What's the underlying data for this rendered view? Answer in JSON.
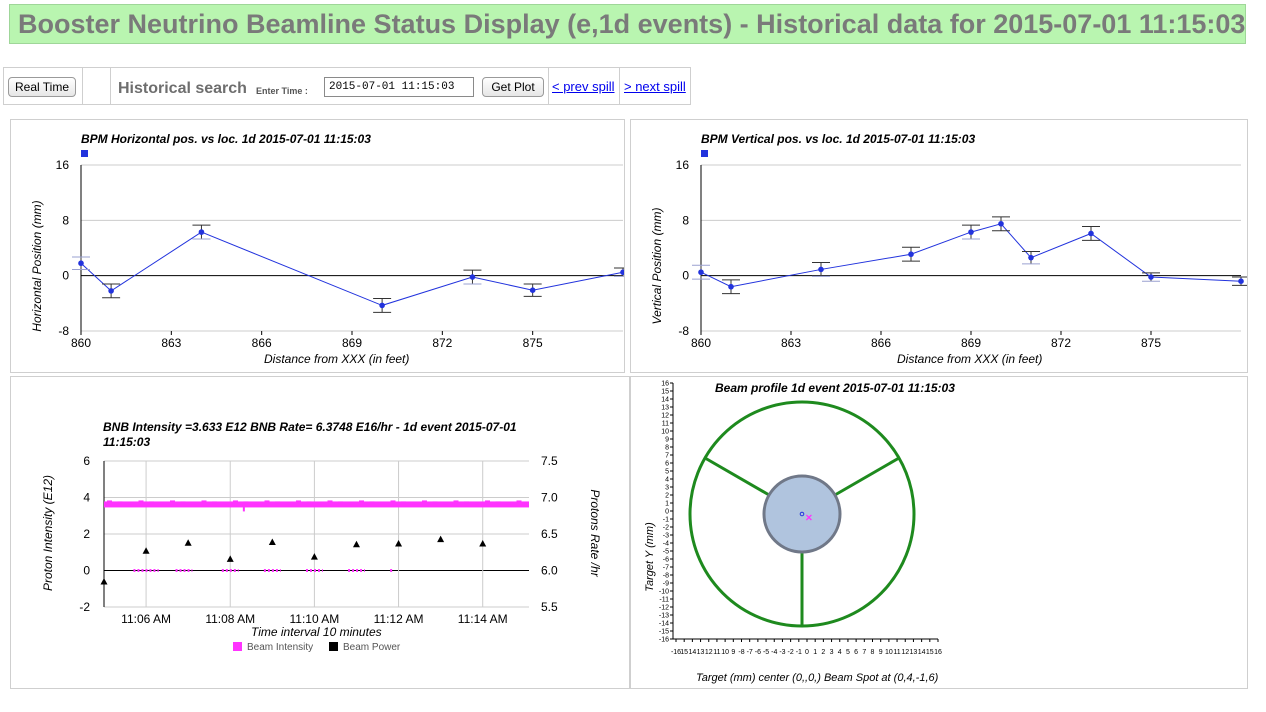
{
  "header": {
    "title": "Booster Neutrino Beamline Status Display (e,1d events) - Historical data for 2015-07-01 11:15:03"
  },
  "toolbar": {
    "realtime_label": "Real Time",
    "historical_label": "Historical search",
    "enter_time_label": "Enter Time :",
    "time_value": "2015-07-01 11:15:03",
    "get_plot_label": "Get Plot",
    "prev_label": "< prev spill",
    "next_label": "> next spill"
  },
  "colors": {
    "bpm_line": "#2233dd",
    "error_bar": "#9aa0d0",
    "intensity": "#ff33ff",
    "power": "#000000",
    "ring": "#1e8a1e",
    "target_fill": "#b0c4de",
    "target_edge": "#707888",
    "beam_spot": "#ff33ff"
  },
  "chart_data": [
    {
      "type": "line",
      "title": "BPM Horizontal pos. vs loc. 1d 2015-07-01 11:15:03",
      "xlabel": "Distance from XXX (in feet)",
      "ylabel": "Horizontal Position (mm)",
      "xlim": [
        860,
        878
      ],
      "ylim": [
        -8,
        16
      ],
      "xticks": [
        860,
        863,
        866,
        869,
        872,
        875
      ],
      "yticks": [
        -8,
        0,
        8,
        16
      ],
      "grid": true,
      "legend": "top-left",
      "series": [
        {
          "x": [
            860,
            861,
            864,
            870,
            873,
            875,
            878
          ],
          "y": [
            1.8,
            -2.2,
            6.3,
            -4.3,
            -0.2,
            -2.1,
            0.5
          ],
          "err": [
            0.9,
            1.0,
            1.0,
            1.0,
            1.0,
            0.9,
            0.6
          ]
        }
      ]
    },
    {
      "type": "line",
      "title": "BPM Vertical pos. vs loc. 1d 2015-07-01 11:15:03",
      "xlabel": "Distance from XXX (in feet)",
      "ylabel": "Vertical Position (mm)",
      "xlim": [
        860,
        878
      ],
      "ylim": [
        -8,
        16
      ],
      "xticks": [
        860,
        863,
        866,
        869,
        872,
        875
      ],
      "yticks": [
        -8,
        0,
        8,
        16
      ],
      "grid": true,
      "legend": "top-left",
      "series": [
        {
          "x": [
            860,
            861,
            864,
            867,
            869,
            870,
            871,
            873,
            875,
            878
          ],
          "y": [
            0.5,
            -1.6,
            0.9,
            3.1,
            6.3,
            7.5,
            2.6,
            6.1,
            -0.2,
            -0.8
          ],
          "err": [
            1.0,
            1.0,
            1.0,
            1.0,
            1.0,
            1.0,
            0.9,
            1.0,
            0.6,
            0.6
          ]
        }
      ]
    },
    {
      "type": "scatter",
      "title": "BNB Intensity =3.633 E12 BNB Rate= 6.3748 E16/hr - 1d event 2015-07-01 11:15:03",
      "xlabel": "Time interval 10 minutes",
      "ylabel": "Proton Intensity (E12)",
      "ylabel_right": "Protons Rate /hr",
      "xlim_minutes": [
        5.0,
        15.1
      ],
      "xticks": [
        {
          "minute": 6,
          "label": "11:06 AM"
        },
        {
          "minute": 8,
          "label": "11:08 AM"
        },
        {
          "minute": 10,
          "label": "11:10 AM"
        },
        {
          "minute": 12,
          "label": "11:12 AM"
        },
        {
          "minute": 14,
          "label": "11:14 AM"
        }
      ],
      "ylim": [
        -2,
        6
      ],
      "yticks": [
        -2,
        0,
        2,
        4,
        6
      ],
      "ylim_right": [
        5.5,
        7.5
      ],
      "yticks_right": [
        "5.5",
        "6.0",
        "6.5",
        "7.0",
        "7.5"
      ],
      "grid": true,
      "legend": "bottom",
      "series": [
        {
          "name": "Beam Intensity",
          "band_value": 3.62,
          "zero_clusters": [
            [
              5.7,
              6.3
            ],
            [
              6.7,
              7.1
            ],
            [
              7.8,
              8.2
            ],
            [
              8.8,
              9.2
            ],
            [
              9.8,
              10.2
            ],
            [
              10.8,
              11.2
            ],
            [
              11.8,
              11.85
            ]
          ]
        },
        {
          "name": "Beam Power",
          "x": [
            5.0,
            6.0,
            7.0,
            8.0,
            9.0,
            10.0,
            11.0,
            12.0,
            13.0,
            14.0
          ],
          "y_right": [
            5.85,
            6.27,
            6.38,
            6.16,
            6.39,
            6.19,
            6.36,
            6.37,
            6.43,
            6.37
          ]
        }
      ]
    },
    {
      "type": "scatter",
      "title": "Beam profile 1d event 2015-07-01 11:15:03",
      "xlabel": "Target (mm) center (0,,0,) Beam Spot at (0,4,-1,6)",
      "ylabel": "Target Y (mm)",
      "xlim": [
        -16,
        16
      ],
      "ylim": [
        -16,
        16
      ],
      "xtick_labels": [
        "-16",
        "15",
        "14",
        "13",
        "12",
        "11",
        "10",
        "9",
        "-8",
        "-7",
        "-6",
        "-5",
        "-4",
        "-3",
        "-2",
        "-1",
        "0",
        "1",
        "2",
        "3",
        "4",
        "5",
        "6",
        "7",
        "8",
        "9",
        "10",
        "11",
        "12",
        "13",
        "14",
        "15",
        "16"
      ],
      "yticks": [
        16,
        15,
        14,
        13,
        12,
        11,
        10,
        9,
        8,
        7,
        6,
        5,
        4,
        3,
        2,
        1,
        0,
        -1,
        -2,
        -3,
        -4,
        -5,
        -6,
        -7,
        -8,
        -9,
        -10,
        -11,
        -12,
        -13,
        -14,
        -15,
        -16
      ],
      "target_center": [
        0,
        0
      ],
      "beam_spot": [
        0.4,
        -1.6
      ]
    }
  ]
}
